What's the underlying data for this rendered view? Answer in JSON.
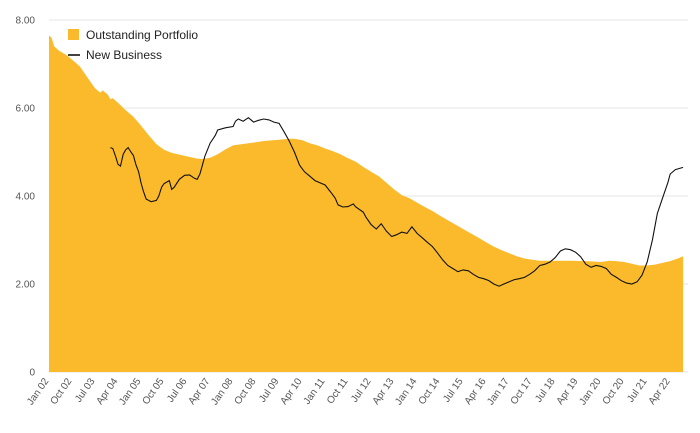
{
  "chart_data": {
    "type": "area",
    "ylim": [
      0,
      8
    ],
    "yticks": [
      "0",
      "2.00",
      "4.00",
      "6.00",
      "8.00"
    ],
    "ytick_values": [
      0,
      2,
      4,
      6,
      8
    ],
    "xlim": [
      2002.0,
      2022.83
    ],
    "xticks": [
      {
        "label": "Jan 02",
        "t": 2002.0
      },
      {
        "label": "Oct 02",
        "t": 2002.75
      },
      {
        "label": "Jul 03",
        "t": 2003.5
      },
      {
        "label": "Apr 04",
        "t": 2004.25
      },
      {
        "label": "Jan 05",
        "t": 2005.0
      },
      {
        "label": "Oct 05",
        "t": 2005.75
      },
      {
        "label": "Jul 06",
        "t": 2006.5
      },
      {
        "label": "Apr 07",
        "t": 2007.25
      },
      {
        "label": "Jan 08",
        "t": 2008.0
      },
      {
        "label": "Oct 08",
        "t": 2008.75
      },
      {
        "label": "Jul 09",
        "t": 2009.5
      },
      {
        "label": "Apr 10",
        "t": 2010.25
      },
      {
        "label": "Jan 11",
        "t": 2011.0
      },
      {
        "label": "Oct 11",
        "t": 2011.75
      },
      {
        "label": "Jul 12",
        "t": 2012.5
      },
      {
        "label": "Apr 13",
        "t": 2013.25
      },
      {
        "label": "Jan 14",
        "t": 2014.0
      },
      {
        "label": "Oct 14",
        "t": 2014.75
      },
      {
        "label": "Jul 15",
        "t": 2015.5
      },
      {
        "label": "Apr 16",
        "t": 2016.25
      },
      {
        "label": "Jan 17",
        "t": 2017.0
      },
      {
        "label": "Oct 17",
        "t": 2017.75
      },
      {
        "label": "Jul 18",
        "t": 2018.5
      },
      {
        "label": "Apr 19",
        "t": 2019.25
      },
      {
        "label": "Jan 20",
        "t": 2020.0
      },
      {
        "label": "Oct 20",
        "t": 2020.75
      },
      {
        "label": "Jul 21",
        "t": 2021.5
      },
      {
        "label": "Apr 22",
        "t": 2022.25
      }
    ],
    "legend": {
      "position": "top-left"
    },
    "colors": {
      "area": "#FBBA2C",
      "line": "#111111",
      "grid": "#e4e4e4"
    },
    "series": [
      {
        "name": "Outstanding Portfolio",
        "kind": "area",
        "points": [
          [
            2002.0,
            7.65
          ],
          [
            2002.08,
            7.6
          ],
          [
            2002.17,
            7.4
          ],
          [
            2002.33,
            7.3
          ],
          [
            2002.58,
            7.2
          ],
          [
            2002.83,
            7.05
          ],
          [
            2003.0,
            6.95
          ],
          [
            2003.25,
            6.7
          ],
          [
            2003.5,
            6.45
          ],
          [
            2003.67,
            6.35
          ],
          [
            2003.75,
            6.4
          ],
          [
            2003.92,
            6.3
          ],
          [
            2004.0,
            6.2
          ],
          [
            2004.08,
            6.22
          ],
          [
            2004.25,
            6.12
          ],
          [
            2004.5,
            5.95
          ],
          [
            2004.75,
            5.8
          ],
          [
            2005.0,
            5.6
          ],
          [
            2005.25,
            5.38
          ],
          [
            2005.5,
            5.18
          ],
          [
            2005.75,
            5.05
          ],
          [
            2006.0,
            4.98
          ],
          [
            2006.5,
            4.9
          ],
          [
            2006.83,
            4.85
          ],
          [
            2007.0,
            4.84
          ],
          [
            2007.25,
            4.87
          ],
          [
            2007.5,
            4.95
          ],
          [
            2007.75,
            5.06
          ],
          [
            2008.0,
            5.15
          ],
          [
            2008.5,
            5.2
          ],
          [
            2008.75,
            5.22
          ],
          [
            2009.0,
            5.25
          ],
          [
            2009.5,
            5.28
          ],
          [
            2009.83,
            5.3
          ],
          [
            2010.0,
            5.3
          ],
          [
            2010.25,
            5.27
          ],
          [
            2010.5,
            5.2
          ],
          [
            2010.75,
            5.15
          ],
          [
            2011.0,
            5.08
          ],
          [
            2011.25,
            5.02
          ],
          [
            2011.5,
            4.95
          ],
          [
            2011.75,
            4.86
          ],
          [
            2012.0,
            4.78
          ],
          [
            2012.25,
            4.66
          ],
          [
            2012.5,
            4.55
          ],
          [
            2012.75,
            4.45
          ],
          [
            2013.0,
            4.3
          ],
          [
            2013.25,
            4.15
          ],
          [
            2013.5,
            4.02
          ],
          [
            2013.75,
            3.95
          ],
          [
            2014.0,
            3.85
          ],
          [
            2014.25,
            3.75
          ],
          [
            2014.5,
            3.66
          ],
          [
            2014.75,
            3.55
          ],
          [
            2015.0,
            3.45
          ],
          [
            2015.25,
            3.35
          ],
          [
            2015.5,
            3.25
          ],
          [
            2015.75,
            3.15
          ],
          [
            2016.0,
            3.05
          ],
          [
            2016.25,
            2.95
          ],
          [
            2016.5,
            2.85
          ],
          [
            2016.75,
            2.77
          ],
          [
            2017.0,
            2.7
          ],
          [
            2017.25,
            2.63
          ],
          [
            2017.5,
            2.58
          ],
          [
            2017.75,
            2.55
          ],
          [
            2018.0,
            2.53
          ],
          [
            2018.5,
            2.53
          ],
          [
            2019.0,
            2.53
          ],
          [
            2019.5,
            2.52
          ],
          [
            2020.0,
            2.5
          ],
          [
            2020.25,
            2.53
          ],
          [
            2020.5,
            2.52
          ],
          [
            2020.75,
            2.5
          ],
          [
            2021.0,
            2.46
          ],
          [
            2021.25,
            2.42
          ],
          [
            2021.5,
            2.42
          ],
          [
            2021.75,
            2.44
          ],
          [
            2022.0,
            2.48
          ],
          [
            2022.25,
            2.52
          ],
          [
            2022.5,
            2.58
          ],
          [
            2022.67,
            2.63
          ]
        ]
      },
      {
        "name": "New Business",
        "kind": "line",
        "points": [
          [
            2004.0,
            5.1
          ],
          [
            2004.08,
            5.08
          ],
          [
            2004.17,
            4.9
          ],
          [
            2004.25,
            4.72
          ],
          [
            2004.33,
            4.68
          ],
          [
            2004.42,
            4.95
          ],
          [
            2004.5,
            5.05
          ],
          [
            2004.58,
            5.1
          ],
          [
            2004.67,
            5.0
          ],
          [
            2004.75,
            4.92
          ],
          [
            2004.83,
            4.72
          ],
          [
            2004.92,
            4.55
          ],
          [
            2005.0,
            4.3
          ],
          [
            2005.08,
            4.1
          ],
          [
            2005.17,
            3.93
          ],
          [
            2005.33,
            3.87
          ],
          [
            2005.5,
            3.9
          ],
          [
            2005.58,
            4.0
          ],
          [
            2005.67,
            4.2
          ],
          [
            2005.75,
            4.28
          ],
          [
            2005.92,
            4.35
          ],
          [
            2006.0,
            4.15
          ],
          [
            2006.08,
            4.2
          ],
          [
            2006.25,
            4.38
          ],
          [
            2006.42,
            4.47
          ],
          [
            2006.58,
            4.48
          ],
          [
            2006.75,
            4.4
          ],
          [
            2006.83,
            4.38
          ],
          [
            2006.92,
            4.5
          ],
          [
            2007.0,
            4.7
          ],
          [
            2007.08,
            4.9
          ],
          [
            2007.25,
            5.2
          ],
          [
            2007.42,
            5.38
          ],
          [
            2007.5,
            5.5
          ],
          [
            2007.75,
            5.55
          ],
          [
            2008.0,
            5.58
          ],
          [
            2008.08,
            5.7
          ],
          [
            2008.17,
            5.75
          ],
          [
            2008.33,
            5.7
          ],
          [
            2008.5,
            5.78
          ],
          [
            2008.67,
            5.68
          ],
          [
            2008.83,
            5.72
          ],
          [
            2009.0,
            5.75
          ],
          [
            2009.17,
            5.73
          ],
          [
            2009.33,
            5.68
          ],
          [
            2009.5,
            5.65
          ],
          [
            2009.67,
            5.45
          ],
          [
            2009.83,
            5.25
          ],
          [
            2010.0,
            5.0
          ],
          [
            2010.17,
            4.7
          ],
          [
            2010.33,
            4.55
          ],
          [
            2010.5,
            4.45
          ],
          [
            2010.67,
            4.35
          ],
          [
            2010.83,
            4.3
          ],
          [
            2011.0,
            4.25
          ],
          [
            2011.17,
            4.1
          ],
          [
            2011.33,
            3.95
          ],
          [
            2011.42,
            3.8
          ],
          [
            2011.58,
            3.75
          ],
          [
            2011.75,
            3.76
          ],
          [
            2011.92,
            3.82
          ],
          [
            2012.0,
            3.75
          ],
          [
            2012.25,
            3.63
          ],
          [
            2012.33,
            3.52
          ],
          [
            2012.5,
            3.35
          ],
          [
            2012.67,
            3.25
          ],
          [
            2012.83,
            3.37
          ],
          [
            2013.0,
            3.2
          ],
          [
            2013.17,
            3.08
          ],
          [
            2013.33,
            3.12
          ],
          [
            2013.5,
            3.18
          ],
          [
            2013.67,
            3.15
          ],
          [
            2013.83,
            3.3
          ],
          [
            2014.0,
            3.15
          ],
          [
            2014.17,
            3.05
          ],
          [
            2014.33,
            2.95
          ],
          [
            2014.5,
            2.85
          ],
          [
            2014.67,
            2.7
          ],
          [
            2014.83,
            2.55
          ],
          [
            2015.0,
            2.42
          ],
          [
            2015.17,
            2.35
          ],
          [
            2015.33,
            2.28
          ],
          [
            2015.5,
            2.32
          ],
          [
            2015.67,
            2.3
          ],
          [
            2015.83,
            2.22
          ],
          [
            2016.0,
            2.15
          ],
          [
            2016.17,
            2.12
          ],
          [
            2016.33,
            2.08
          ],
          [
            2016.5,
            2.0
          ],
          [
            2016.67,
            1.95
          ],
          [
            2016.83,
            2.0
          ],
          [
            2017.0,
            2.05
          ],
          [
            2017.17,
            2.1
          ],
          [
            2017.33,
            2.12
          ],
          [
            2017.5,
            2.15
          ],
          [
            2017.67,
            2.22
          ],
          [
            2017.83,
            2.3
          ],
          [
            2018.0,
            2.42
          ],
          [
            2018.17,
            2.45
          ],
          [
            2018.33,
            2.5
          ],
          [
            2018.5,
            2.6
          ],
          [
            2018.67,
            2.75
          ],
          [
            2018.83,
            2.8
          ],
          [
            2019.0,
            2.78
          ],
          [
            2019.17,
            2.72
          ],
          [
            2019.33,
            2.62
          ],
          [
            2019.5,
            2.45
          ],
          [
            2019.67,
            2.38
          ],
          [
            2019.83,
            2.42
          ],
          [
            2020.0,
            2.4
          ],
          [
            2020.17,
            2.35
          ],
          [
            2020.33,
            2.22
          ],
          [
            2020.5,
            2.15
          ],
          [
            2020.67,
            2.07
          ],
          [
            2020.83,
            2.02
          ],
          [
            2021.0,
            2.0
          ],
          [
            2021.17,
            2.05
          ],
          [
            2021.33,
            2.2
          ],
          [
            2021.5,
            2.5
          ],
          [
            2021.67,
            3.0
          ],
          [
            2021.83,
            3.6
          ],
          [
            2022.0,
            3.95
          ],
          [
            2022.17,
            4.3
          ],
          [
            2022.25,
            4.5
          ],
          [
            2022.42,
            4.6
          ],
          [
            2022.67,
            4.65
          ]
        ]
      }
    ]
  }
}
